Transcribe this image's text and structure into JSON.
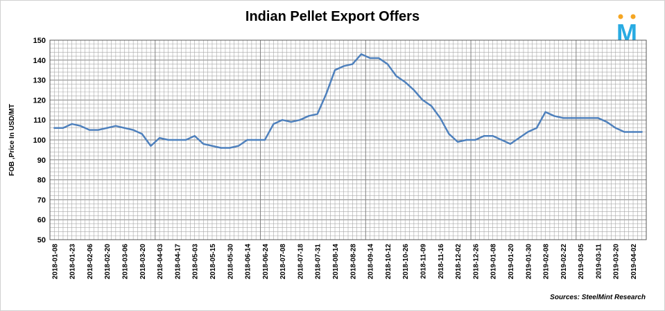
{
  "chart_data": {
    "type": "line",
    "title": "Indian Pellet Export Offers",
    "ylabel": "FOB ,Price In USD/MT",
    "xlabel": "",
    "source": "Sources: SteelMint Research",
    "ylim": [
      50,
      150
    ],
    "yticks": [
      50,
      60,
      70,
      80,
      90,
      100,
      110,
      120,
      130,
      140,
      150
    ],
    "grid": true,
    "legend": "none",
    "colors": {
      "line": "#4f81bd",
      "grid": "#a6a6a6",
      "major_grid": "#808080"
    },
    "x_tick_labels": [
      "2018-01-08",
      "2018-01-23",
      "2018-02-06",
      "2018-02-20",
      "2018-03-06",
      "2018-03-20",
      "2018-04-03",
      "2018-04-17",
      "2018-05-03",
      "2018-05-15",
      "2018-05-30",
      "2018-06-14",
      "2018-06-24",
      "2018-07-08",
      "2018-07-18",
      "2018-07-31",
      "2018-08-14",
      "2018-08-28",
      "2018-09-14",
      "2018-10-12",
      "2018-10-26",
      "2018-11-09",
      "2018-11-16",
      "2018-12-02",
      "2018-12-26",
      "2019-01-08",
      "2019-01-20",
      "2019-01-30",
      "2019-02-08",
      "2019-02-22",
      "2019-03-05",
      "2019-03-11",
      "2019-03-20",
      "2019-04-02"
    ],
    "series": [
      {
        "values": [
          106,
          106,
          108,
          107,
          105,
          105,
          106,
          107,
          106,
          105,
          103,
          97,
          101,
          100,
          100,
          100,
          102,
          98,
          97,
          96,
          96,
          97,
          100,
          100,
          100,
          108,
          110,
          109,
          110,
          112,
          113,
          123,
          135,
          137,
          138,
          143,
          141,
          141,
          138,
          132,
          129,
          125,
          120,
          117,
          111,
          103,
          99,
          100,
          100,
          102,
          102,
          100,
          98,
          101,
          104,
          106,
          114,
          112,
          111,
          111,
          111,
          111,
          111,
          109,
          106,
          104,
          104,
          104
        ]
      }
    ]
  },
  "logo": {
    "letter": "M"
  }
}
